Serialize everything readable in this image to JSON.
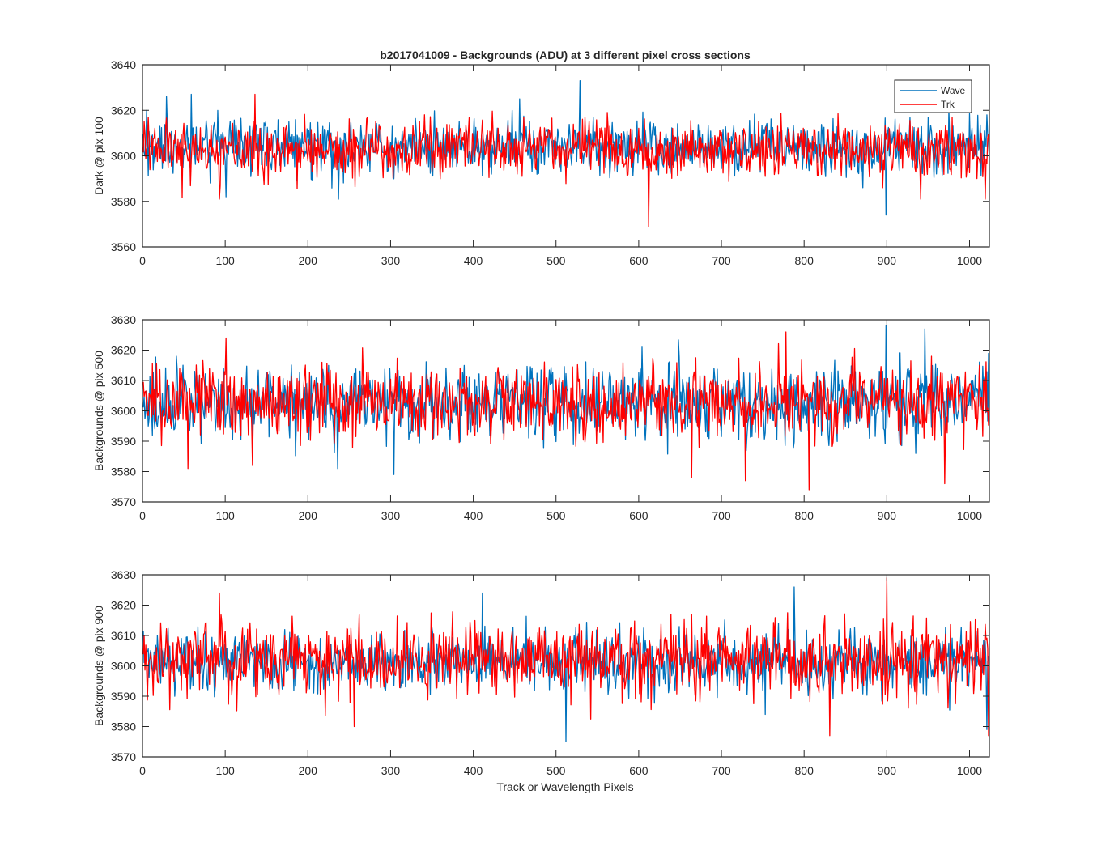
{
  "figure": {
    "title": "b2017041009 - Backgrounds (ADU) at 3 different pixel cross sections",
    "xlabel": "Track or Wavelength Pixels"
  },
  "legend": {
    "location": "top-right",
    "entries": [
      {
        "name": "Wave",
        "color": "#0072BD"
      },
      {
        "name": "Trk",
        "color": "#FF0000"
      }
    ]
  },
  "colors": {
    "wave": "#0072BD",
    "trk": "#FF0000",
    "axes": "#262626",
    "background": "#FFFFFF"
  },
  "chart_data": [
    {
      "type": "line",
      "ylabel": "Dark @ pix 100",
      "xlim": [
        0,
        1024
      ],
      "ylim": [
        3560,
        3640
      ],
      "xticks": [
        0,
        100,
        200,
        300,
        400,
        500,
        600,
        700,
        800,
        900,
        1000
      ],
      "yticks": [
        3560,
        3580,
        3600,
        3620,
        3640
      ],
      "grid": false,
      "series": [
        {
          "name": "Wave",
          "color": "#0072BD",
          "n_points": 1024,
          "mean": 3604,
          "spread": 6,
          "extremes": [
            [
              4,
              3620
            ],
            [
              28,
              3626
            ],
            [
              58,
              3627
            ],
            [
              100,
              3582
            ],
            [
              236,
              3581
            ],
            [
              455,
              3625
            ],
            [
              528,
              3633
            ],
            [
              870,
              3586
            ],
            [
              898,
              3574
            ],
            [
              1020,
              3618
            ]
          ]
        },
        {
          "name": "Trk",
          "color": "#FF0000",
          "n_points": 1024,
          "mean": 3603,
          "spread": 6,
          "extremes": [
            [
              6,
              3617
            ],
            [
              92,
              3581
            ],
            [
              135,
              3627
            ],
            [
              460,
              3617
            ],
            [
              611,
              3569
            ],
            [
              940,
              3581
            ],
            [
              1008,
              3590
            ],
            [
              1018,
              3581
            ]
          ]
        }
      ]
    },
    {
      "type": "line",
      "ylabel": "Backgrounds @ pix 500",
      "xlim": [
        0,
        1024
      ],
      "ylim": [
        3570,
        3630
      ],
      "xticks": [
        0,
        100,
        200,
        300,
        400,
        500,
        600,
        700,
        800,
        900,
        1000
      ],
      "yticks": [
        3570,
        3580,
        3590,
        3600,
        3610,
        3620,
        3630
      ],
      "grid": false,
      "series": [
        {
          "name": "Wave",
          "color": "#0072BD",
          "n_points": 1024,
          "mean": 3603,
          "spread": 6,
          "extremes": [
            [
              40,
              3618
            ],
            [
              235,
              3581
            ],
            [
              303,
              3579
            ],
            [
              603,
              3621
            ],
            [
              898,
              3628
            ],
            [
              945,
              3627
            ],
            [
              1023,
              3585
            ]
          ]
        },
        {
          "name": "Trk",
          "color": "#FF0000",
          "n_points": 1024,
          "mean": 3603,
          "spread": 6,
          "extremes": [
            [
              54,
              3581
            ],
            [
              100,
              3624
            ],
            [
              132,
              3582
            ],
            [
              663,
              3578
            ],
            [
              728,
              3577
            ],
            [
              777,
              3626
            ],
            [
              805,
              3574
            ],
            [
              969,
              3576
            ]
          ]
        }
      ]
    },
    {
      "type": "line",
      "ylabel": "Backgrounds @ pix 900",
      "xlim": [
        0,
        1024
      ],
      "ylim": [
        3570,
        3630
      ],
      "xticks": [
        0,
        100,
        200,
        300,
        400,
        500,
        600,
        700,
        800,
        900,
        1000
      ],
      "yticks": [
        3570,
        3580,
        3590,
        3600,
        3610,
        3620,
        3630
      ],
      "grid": false,
      "series": [
        {
          "name": "Wave",
          "color": "#0072BD",
          "n_points": 1024,
          "mean": 3601,
          "spread": 5,
          "extremes": [
            [
              410,
              3624
            ],
            [
              511,
              3575
            ],
            [
              752,
              3584
            ],
            [
              787,
              3626
            ],
            [
              1020,
              3579
            ]
          ]
        },
        {
          "name": "Trk",
          "color": "#FF0000",
          "n_points": 1024,
          "mean": 3602,
          "spread": 6,
          "extremes": [
            [
              92,
              3624
            ],
            [
              255,
              3580
            ],
            [
              830,
              3577
            ],
            [
              899,
              3629
            ],
            [
              1022,
              3577
            ]
          ]
        }
      ]
    }
  ]
}
